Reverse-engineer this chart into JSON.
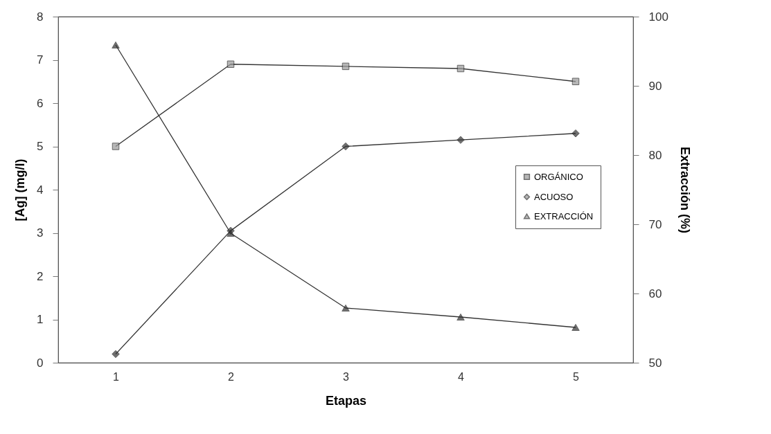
{
  "chart_data": {
    "type": "line",
    "xlabel": "Etapas",
    "ylabel": "[Ag] (mg/l)",
    "y2label": "Extracción (%)",
    "categories": [
      "1",
      "2",
      "3",
      "4",
      "5"
    ],
    "series": [
      {
        "name": "ORGÁNICO",
        "color": "#333333",
        "marker": "square",
        "values": [
          5.0,
          6.9,
          6.85,
          6.8,
          6.5
        ]
      },
      {
        "name": "ACUOSO",
        "color": "#333333",
        "marker": "diamond",
        "values": [
          0.2,
          3.05,
          5.0,
          5.15,
          5.3
        ]
      },
      {
        "name": "EXTRACCIÓN",
        "color": "#333333",
        "marker": "triangle",
        "axis": "y2",
        "values": [
          95.9,
          68.7,
          57.9,
          56.6,
          55.1
        ]
      }
    ],
    "ylim": [
      0,
      8
    ],
    "yticks": [
      0,
      1,
      2,
      3,
      4,
      5,
      6,
      7,
      8
    ],
    "y2lim": [
      50,
      100
    ],
    "y2ticks": [
      50,
      60,
      70,
      80,
      90,
      100
    ],
    "legend": "right",
    "grid": false,
    "line_style": "solid"
  }
}
